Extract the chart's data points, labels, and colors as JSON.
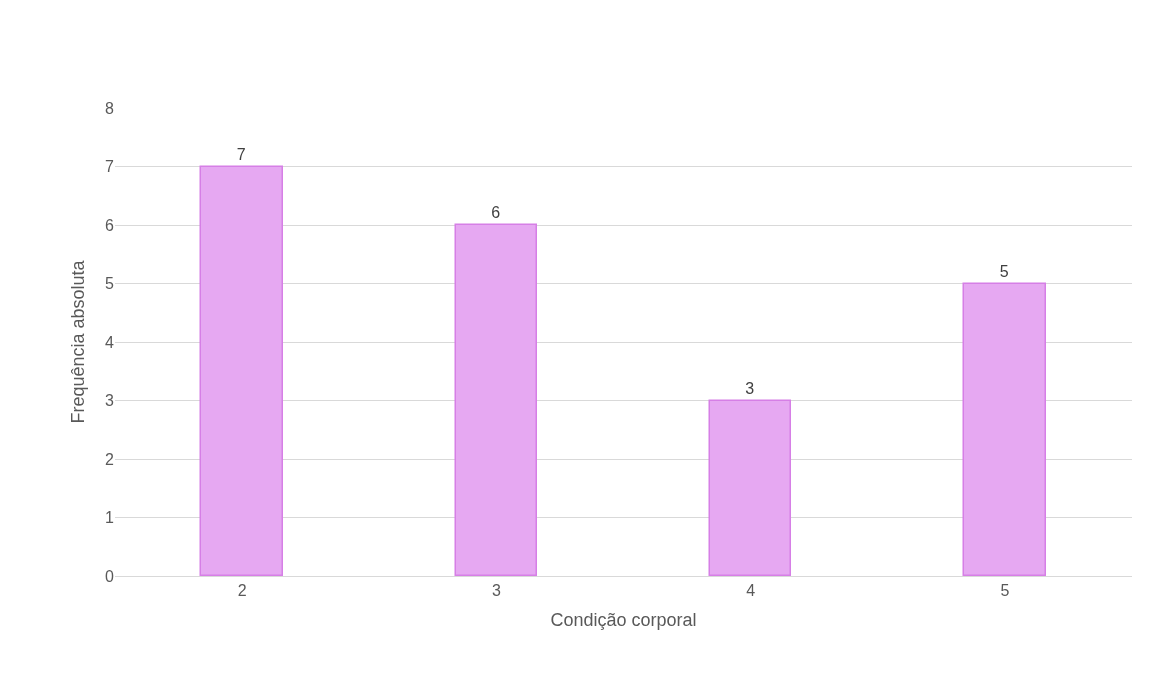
{
  "chart_data": {
    "type": "bar",
    "xlabel": "Condição corporal",
    "ylabel": "Frequência absoluta",
    "categories": [
      "2",
      "3",
      "4",
      "5"
    ],
    "values": [
      7,
      6,
      3,
      5
    ],
    "color": "#e6a8f2",
    "ylim": [
      0,
      8
    ],
    "yticks": [
      0,
      1,
      2,
      3,
      4,
      5,
      6,
      7,
      8
    ],
    "grid": "y",
    "data_labels": true
  }
}
